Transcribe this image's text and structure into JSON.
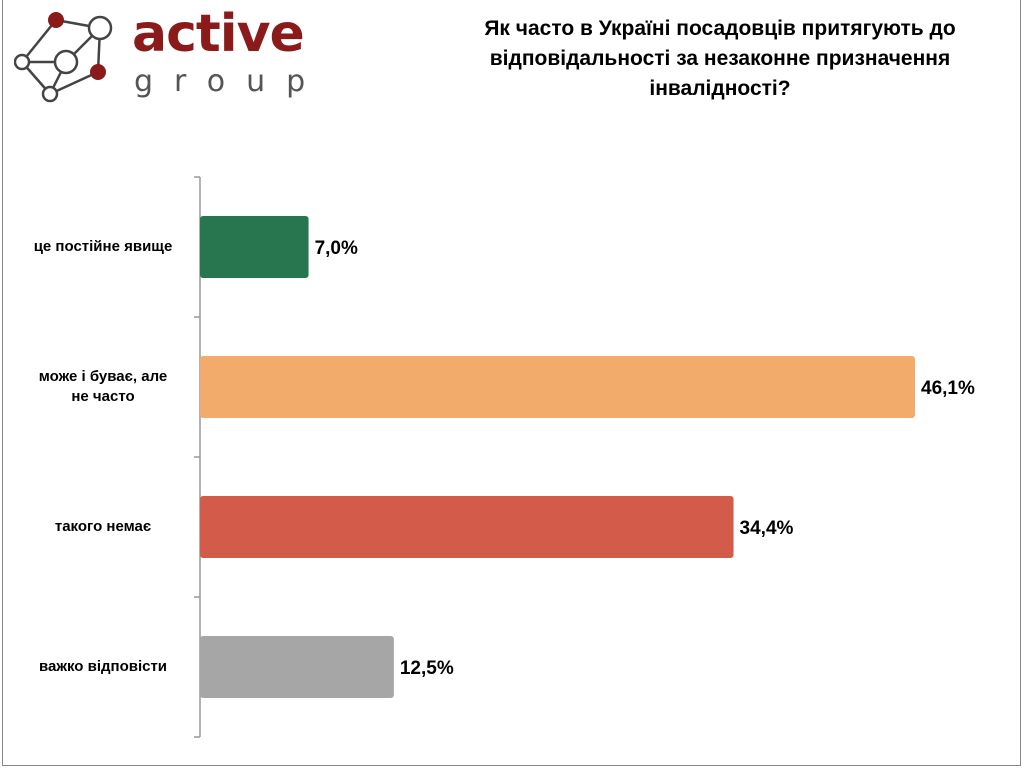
{
  "logo": {
    "word": "active",
    "sub": "group"
  },
  "chart_data": {
    "type": "bar",
    "orientation": "horizontal",
    "title": "Як часто в Україні посадовців притягують до відповідальності за незаконне призначення інвалідності?",
    "categories": [
      "це постійне явище",
      "може і буває, але не часто",
      "такого немає",
      "важко відповісти"
    ],
    "values": [
      7.0,
      46.1,
      34.4,
      12.5
    ],
    "value_labels": [
      "7,0%",
      "46,1%",
      "34,4%",
      "12,5%"
    ],
    "colors": [
      "#277650",
      "#f2ab6a",
      "#d35b4a",
      "#a6a6a6"
    ],
    "xlim": [
      0,
      50
    ],
    "grid": false,
    "legend": "none"
  }
}
